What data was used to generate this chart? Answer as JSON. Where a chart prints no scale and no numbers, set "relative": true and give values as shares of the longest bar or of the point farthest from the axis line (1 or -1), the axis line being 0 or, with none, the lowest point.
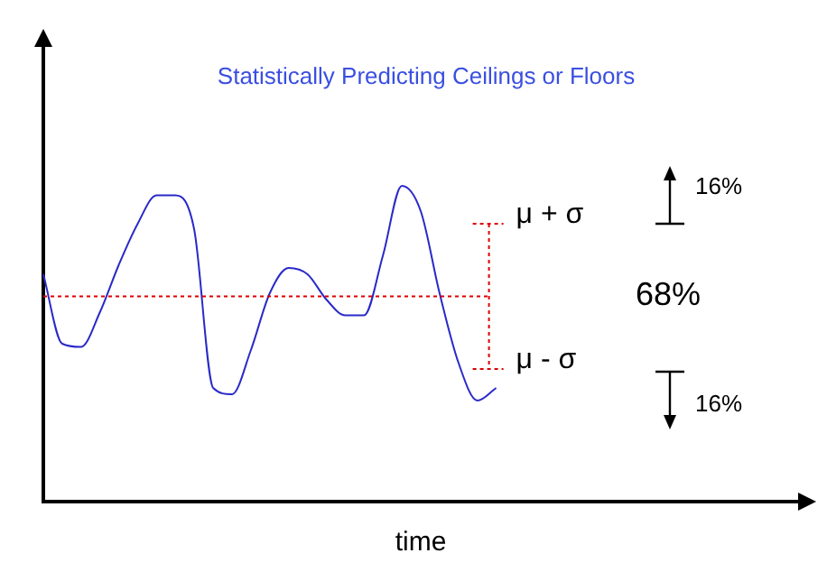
{
  "chart_data": {
    "type": "line",
    "title": "Statistically Predicting Ceilings or Floors",
    "xlabel": "time",
    "relative": true,
    "categories": [
      null,
      null,
      null,
      null,
      null,
      null,
      null,
      null,
      null,
      null,
      null,
      null,
      null,
      null,
      null,
      null,
      null,
      null,
      null,
      null,
      null,
      null,
      null,
      null,
      null,
      null,
      null,
      null,
      null,
      null,
      null,
      null,
      null,
      null,
      null,
      null,
      null,
      null,
      null,
      null,
      null
    ],
    "values": [
      0.72,
      0.5,
      0.49,
      0.6,
      0.75,
      0.88,
      0.97,
      0.97,
      0.86,
      0.36,
      0.34,
      0.48,
      0.66,
      0.74,
      0.72,
      0.64,
      0.59,
      0.59,
      0.78,
      1,
      0.92,
      0.66,
      0.44,
      0.32,
      0.36,
      null,
      null,
      null,
      null,
      null,
      null,
      null,
      null,
      null,
      null,
      null,
      null,
      null,
      null,
      null,
      null
    ],
    "color": "#2a2ac8",
    "ref_lines": [
      {
        "axis": "y",
        "value": 0.65,
        "color": "#dd0000",
        "line_style": "dotted"
      },
      {
        "axis": "y",
        "value": 0.88,
        "label": "μ + σ",
        "color": "#dd0000",
        "line_style": "dotted"
      },
      {
        "axis": "y",
        "value": 0.42,
        "label": "μ - σ",
        "color": "#dd0000",
        "line_style": "dotted"
      }
    ],
    "annotations": [
      "68%",
      "16%",
      "16%"
    ],
    "grid": false,
    "legend": false
  }
}
